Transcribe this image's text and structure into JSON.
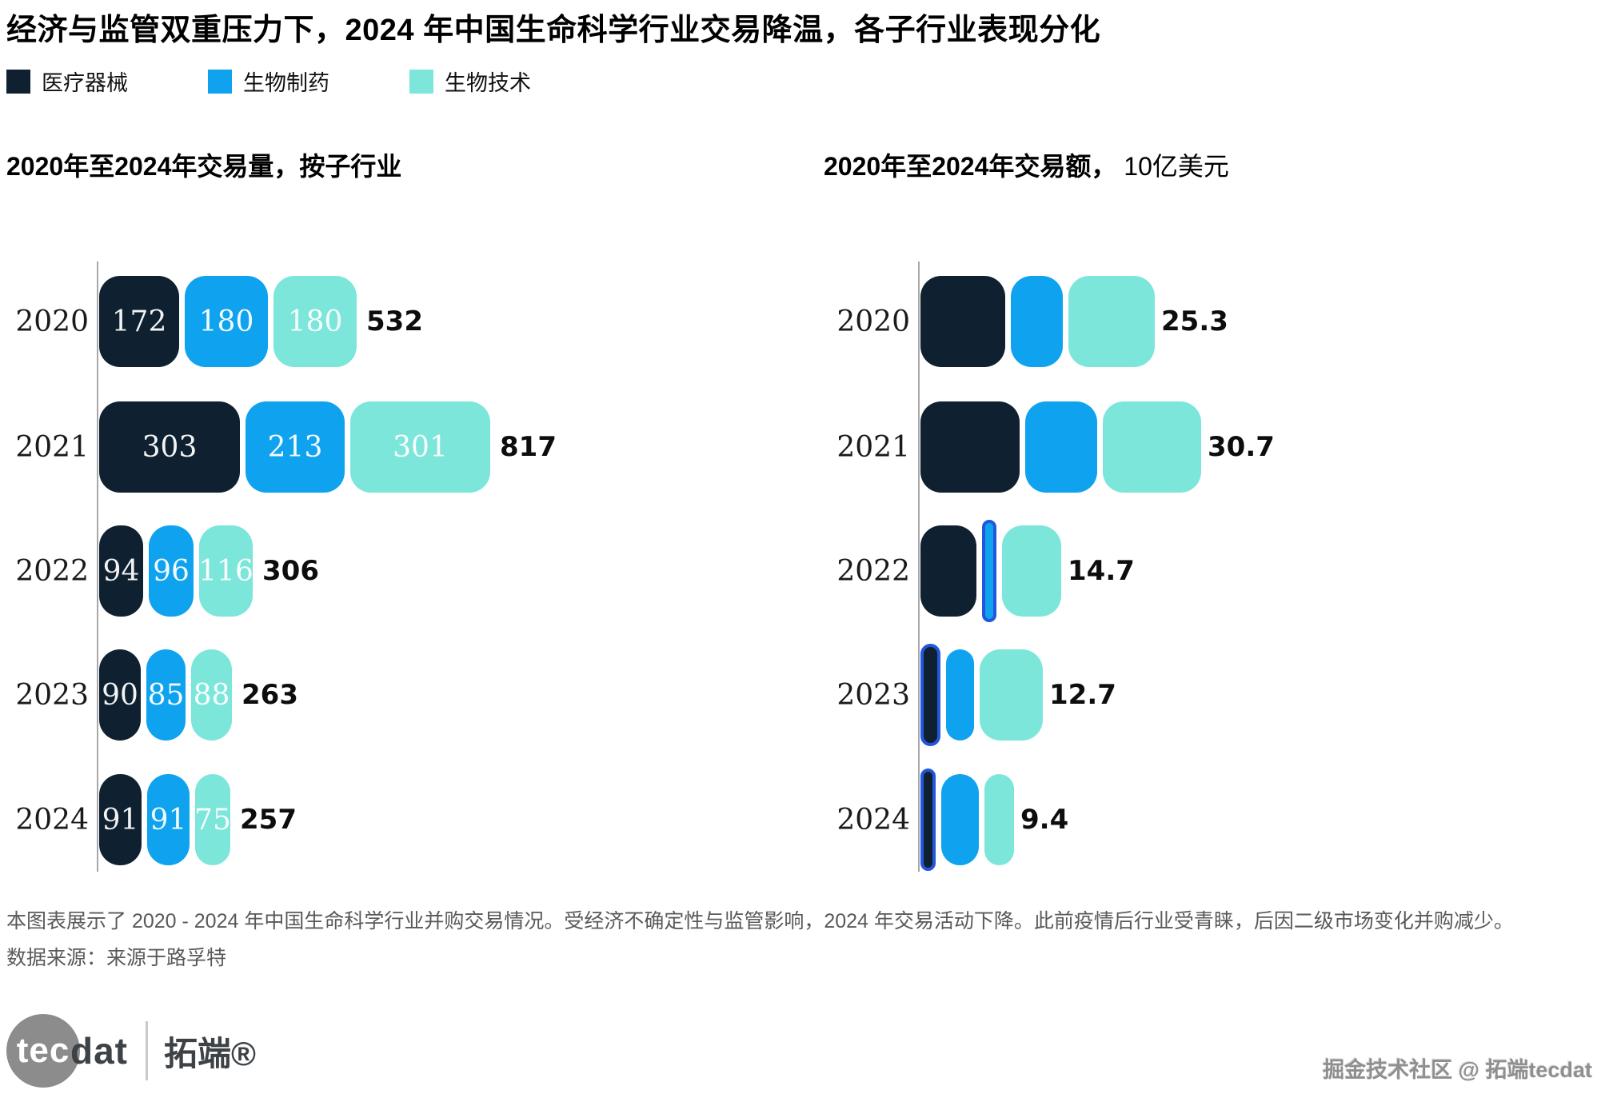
{
  "title": "经济与监管双重压力下，2024 年中国生命科学行业交易降温，各子行业表现分化",
  "legend": {
    "items": [
      {
        "label": "医疗器械",
        "color": "#0f2130"
      },
      {
        "label": "生物制药",
        "color": "#0fa3ef"
      },
      {
        "label": "生物技术",
        "color": "#7ce6da"
      }
    ]
  },
  "charts": {
    "volume": {
      "subtitle_bold": "2020年至2024年交易量，按子行业",
      "subtitle_regular": ""
    },
    "value": {
      "subtitle_bold": "2020年至2024年交易额，",
      "subtitle_regular": " 10亿美元"
    }
  },
  "footnote": {
    "note": "本图表展示了 2020 - 2024 年中国生命科学行业并购交易情况。受经济不确定性与监管影响，2024 年交易活动下降。此前疫情后行业受青睐，后因二级市场变化并购减少。",
    "source": "数据来源：来源于路孚特"
  },
  "branding": {
    "logo_tec": "tec",
    "logo_dat": "dat",
    "logo_cn": "拓端®",
    "watermark": "掘金技术社区 @ 拓端tecdat"
  },
  "chart_data": [
    {
      "type": "bar",
      "orientation": "horizontal",
      "stacked": true,
      "title": "2020年至2024年交易量，按子行业",
      "categories": [
        "2020",
        "2021",
        "2022",
        "2023",
        "2024"
      ],
      "series": [
        {
          "name": "医疗器械",
          "color": "#0f2130",
          "values": [
            172,
            303,
            94,
            90,
            91
          ]
        },
        {
          "name": "生物制药",
          "color": "#0fa3ef",
          "values": [
            180,
            213,
            96,
            85,
            91
          ]
        },
        {
          "name": "生物技术",
          "color": "#7ce6da",
          "values": [
            180,
            301,
            116,
            88,
            75
          ]
        }
      ],
      "totals": [
        532,
        817,
        306,
        263,
        257
      ],
      "segment_labels_shown": true,
      "legend_position": "top",
      "grid": false,
      "axis": "vertical baseline only, no ticks"
    },
    {
      "type": "bar",
      "orientation": "horizontal",
      "stacked": true,
      "title": "2020年至2024年交易额， 10亿美元",
      "categories": [
        "2020",
        "2021",
        "2022",
        "2023",
        "2024"
      ],
      "series": [
        {
          "name": "医疗器械",
          "color": "#0f2130",
          "estimated": true,
          "values": [
            9.6,
            11.3,
            6.4,
            2.3,
            1.7
          ]
        },
        {
          "name": "生物制药",
          "color": "#0fa3ef",
          "estimated": true,
          "values": [
            5.9,
            8.2,
            1.6,
            3.2,
            4.3
          ]
        },
        {
          "name": "生物技术",
          "color": "#7ce6da",
          "estimated": true,
          "values": [
            9.8,
            11.2,
            6.7,
            7.2,
            3.4
          ]
        }
      ],
      "totals": [
        25.3,
        30.7,
        14.7,
        12.7,
        9.4
      ],
      "segment_labels_shown": false,
      "legend_position": "top",
      "grid": false,
      "axis": "vertical baseline only, no ticks"
    }
  ]
}
